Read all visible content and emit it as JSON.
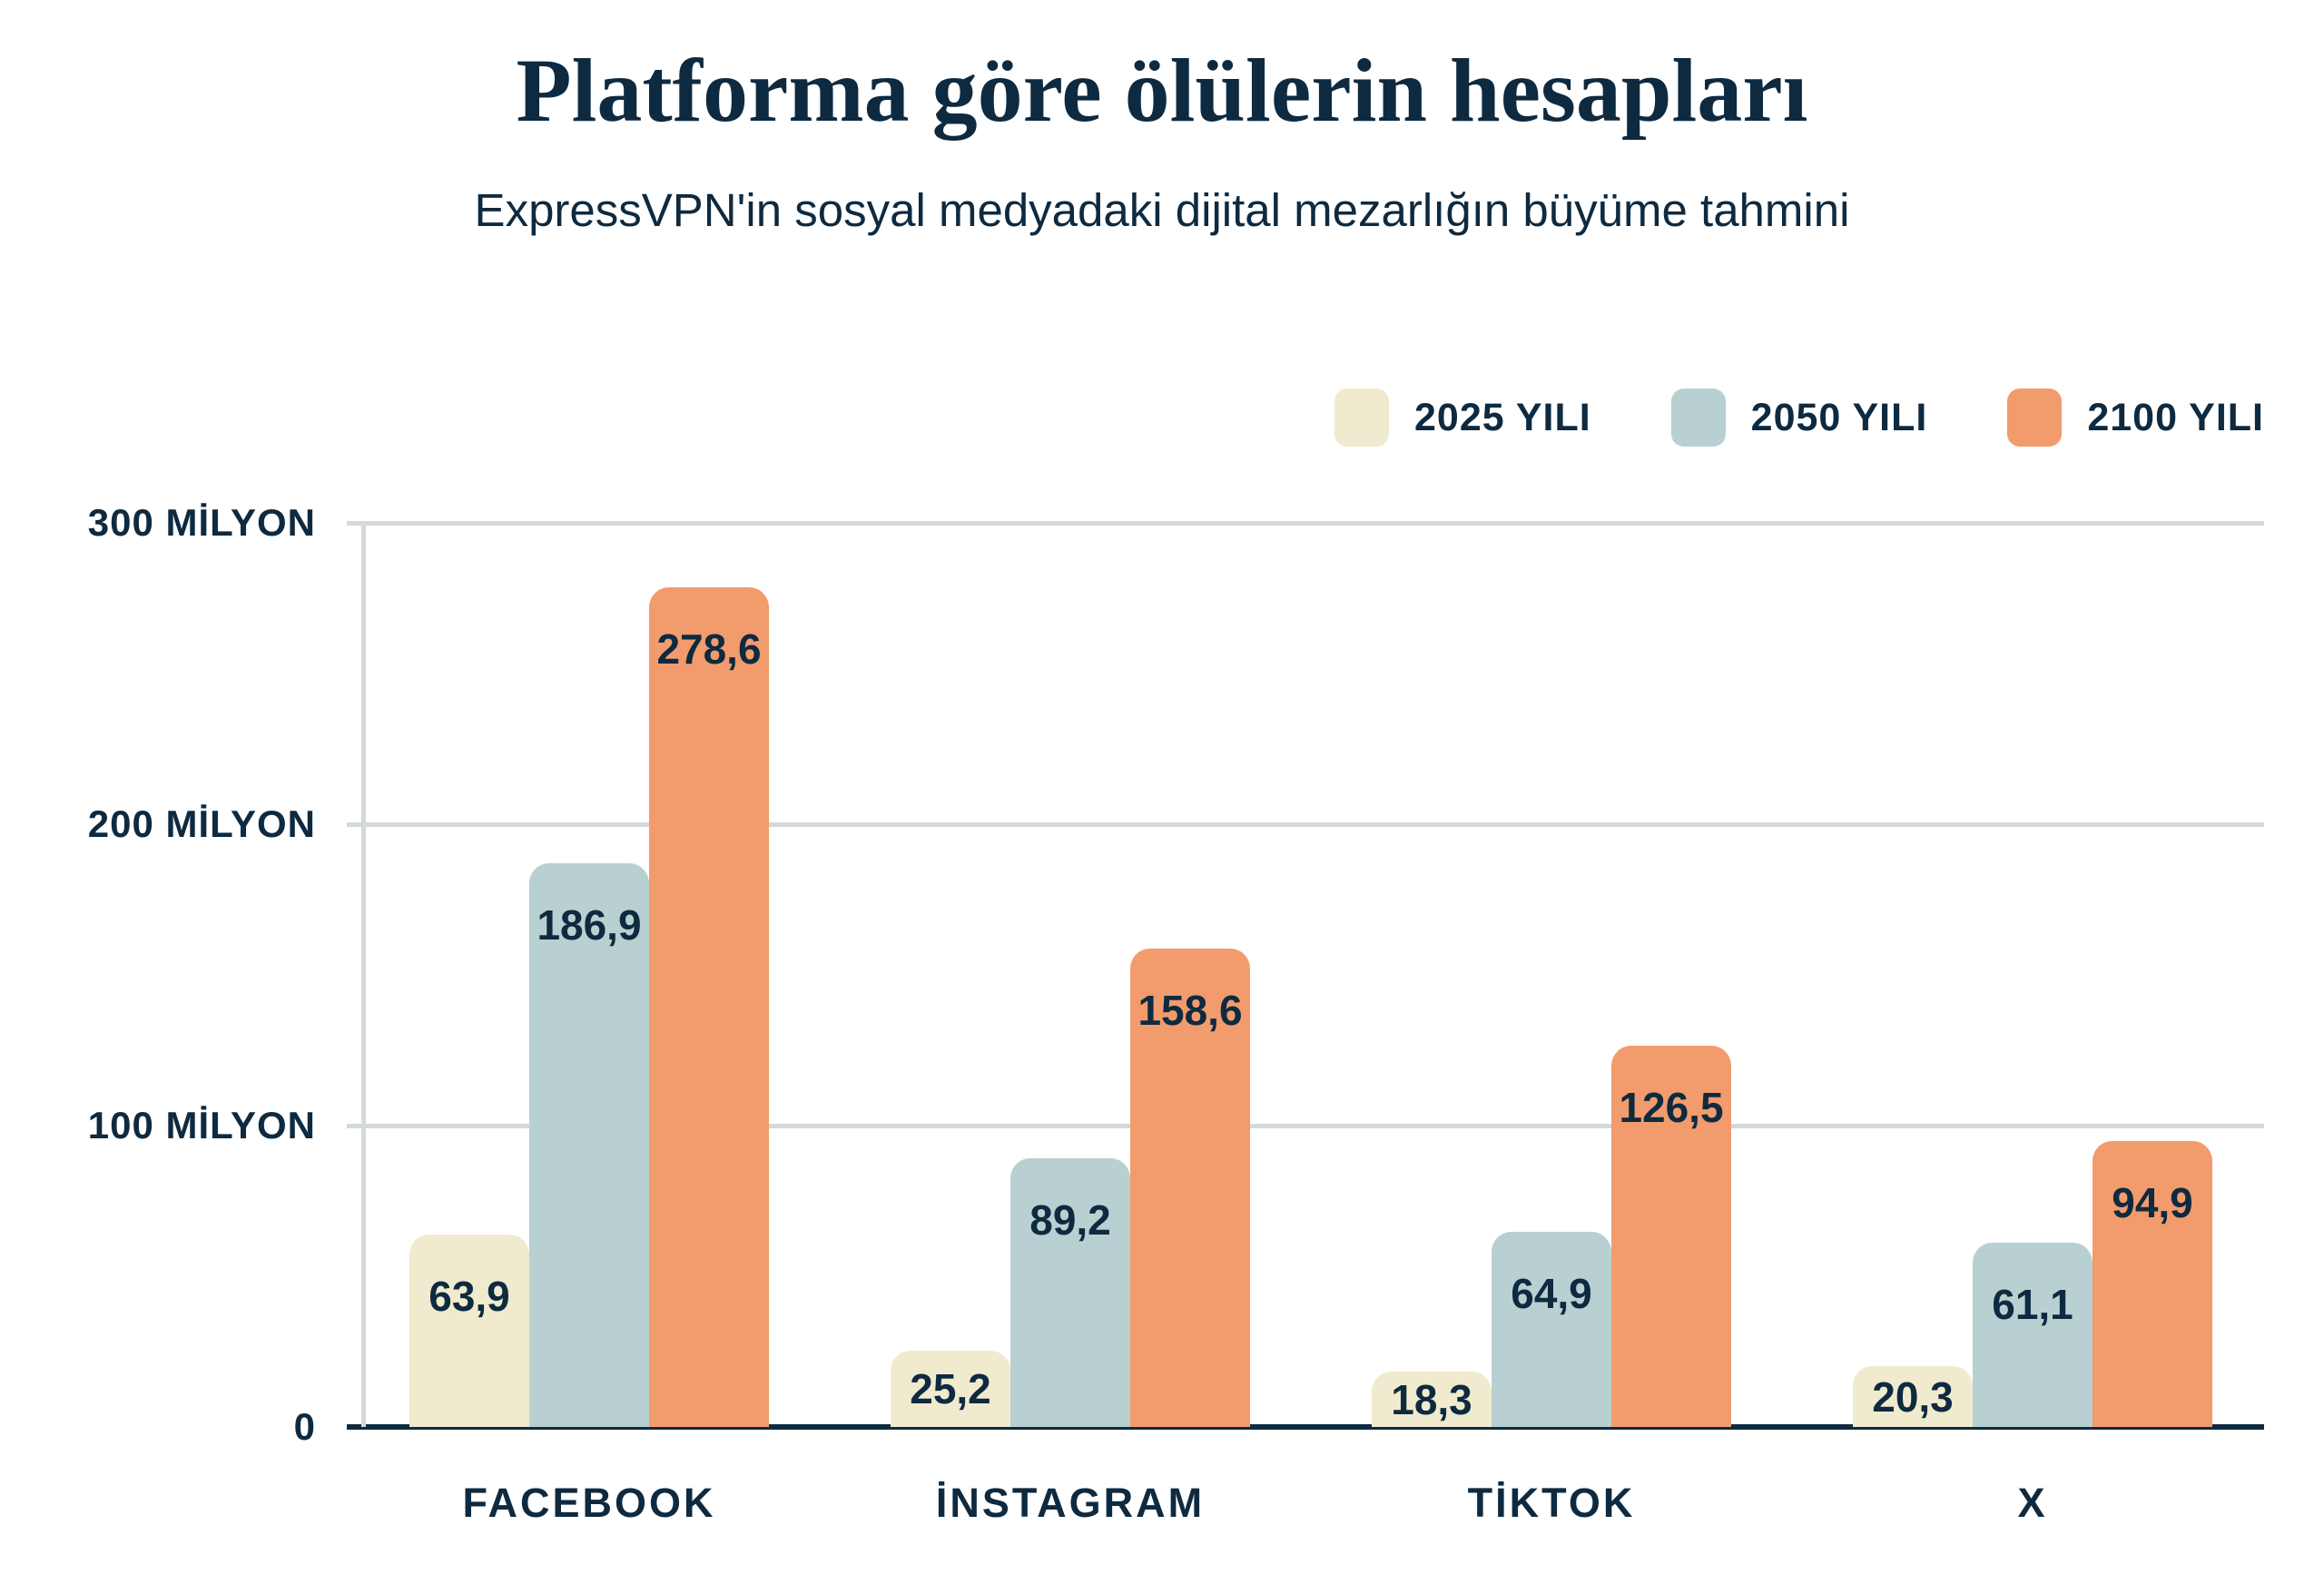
{
  "title": "Platforma göre ölülerin hesapları",
  "subtitle": "ExpressVPN'in sosyal medyadaki dijital mezarlığın büyüme tahmini",
  "colors": {
    "navy": "#0E2A40",
    "grid": "#D4D9DB",
    "cream": "#F0EACE",
    "blue": "#B8D0D1",
    "orange": "#F29B6C",
    "background": "#FFFFFF"
  },
  "legend": [
    {
      "label": "2025 YILI",
      "color": "#F0EACE"
    },
    {
      "label": "2050 YILI",
      "color": "#B8D0D1"
    },
    {
      "label": "2100 YILI",
      "color": "#F29B6C"
    }
  ],
  "y_axis": {
    "ticks": [
      {
        "label": "300 MİLYON",
        "value": 300
      },
      {
        "label": "200 MİLYON",
        "value": 200
      },
      {
        "label": "100 MİLYON",
        "value": 100
      },
      {
        "label": "0",
        "value": 0
      }
    ]
  },
  "chart_data": {
    "type": "bar",
    "categories": [
      "FACEBOOK",
      "İNSTAGRAM",
      "TİKTOK",
      "X"
    ],
    "series": [
      {
        "name": "2025 YILI",
        "color": "#F0EACE",
        "values": [
          63.9,
          25.2,
          18.3,
          20.3
        ]
      },
      {
        "name": "2050 YILI",
        "color": "#B8D0D1",
        "values": [
          186.9,
          89.2,
          64.9,
          61.1
        ]
      },
      {
        "name": "2100 YILI",
        "color": "#F29B6C",
        "values": [
          278.6,
          158.6,
          126.5,
          94.9
        ]
      }
    ],
    "title": "Platforma göre ölülerin hesapları",
    "subtitle": "ExpressVPN'in sosyal medyadaki dijital mezarlığın büyüme tahmini",
    "xlabel": "",
    "ylabel": "",
    "ylim": [
      0,
      300
    ],
    "grid": true,
    "decimal_separator": ",",
    "legend_position": "top-right"
  }
}
